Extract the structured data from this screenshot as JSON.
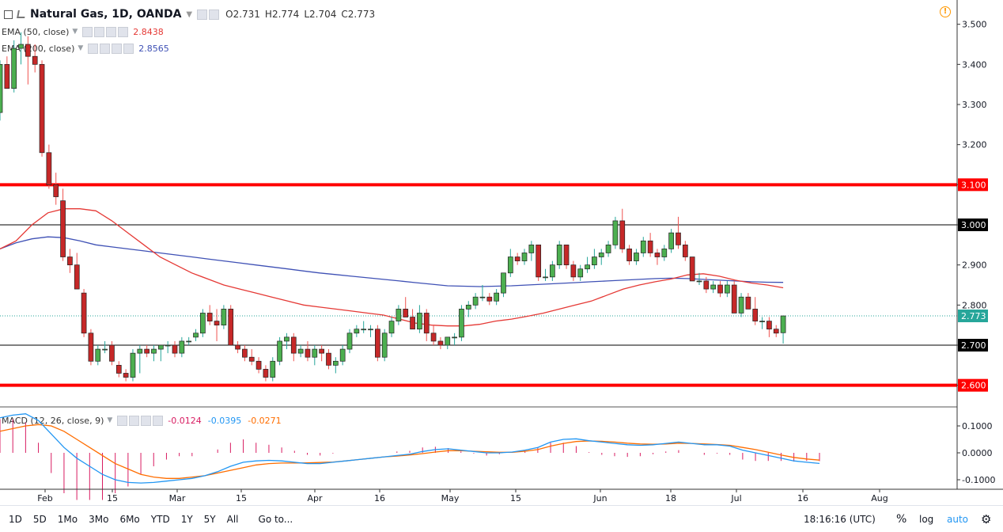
{
  "header": {
    "menu_icon": "menu-square-icon",
    "collapse_icon": "chevron-diagonal-icon",
    "symbol_title": "Natural Gas, 1D, OANDA",
    "ohlc": {
      "o_label": "O",
      "o": "2.731",
      "h_label": "H",
      "h": "2.774",
      "l_label": "L",
      "l": "2.704",
      "c_label": "C",
      "c": "2.773"
    },
    "alert_icon": "alert-clock-icon"
  },
  "indicators": {
    "ema50": {
      "label": "EMA (50, close)",
      "value": "2.8438",
      "color": "#e53935"
    },
    "ema200": {
      "label": "EMA (200, close)",
      "value": "2.8565",
      "color": "#3f51b5"
    },
    "macd": {
      "label": "MACD (12, 26, close, 9)",
      "hist": "-0.0124",
      "macd": "-0.0395",
      "signal": "-0.0271",
      "hist_color": "#d81b60",
      "macd_color": "#2196f3",
      "signal_color": "#ff6d00"
    }
  },
  "price_axis": {
    "ticks": [
      "3.500",
      "3.400",
      "3.300",
      "3.200",
      "3.100",
      "3.000",
      "2.900",
      "2.800",
      "2.700",
      "2.600"
    ],
    "badges": [
      {
        "text": "3.100",
        "price": 3.1,
        "bg": "#ff0000",
        "fg": "#ffffff"
      },
      {
        "text": "3.000",
        "price": 3.0,
        "bg": "#000000",
        "fg": "#ffffff"
      },
      {
        "text": "2.773",
        "price": 2.773,
        "bg": "#26a69a",
        "fg": "#ffffff"
      },
      {
        "text": "2.700",
        "price": 2.7,
        "bg": "#000000",
        "fg": "#ffffff"
      },
      {
        "text": "2.600",
        "price": 2.6,
        "bg": "#ff0000",
        "fg": "#ffffff"
      }
    ]
  },
  "macd_axis": {
    "ticks": [
      "0.1000",
      "0.0000",
      "-0.1000"
    ]
  },
  "time_axis": {
    "labels": [
      "Feb",
      "15",
      "Mar",
      "15",
      "Apr",
      "16",
      "May",
      "15",
      "Jun",
      "18",
      "Jul",
      "16",
      "Aug"
    ]
  },
  "horizontal_lines": [
    {
      "price": 3.1,
      "color": "#ff0000",
      "kind": "resistance"
    },
    {
      "price": 3.0,
      "color": "#000000",
      "kind": "level"
    },
    {
      "price": 2.7,
      "color": "#000000",
      "kind": "level"
    },
    {
      "price": 2.6,
      "color": "#ff0000",
      "kind": "support"
    }
  ],
  "bottom_bar": {
    "timeframes": [
      "1D",
      "5D",
      "1Mo",
      "3Mo",
      "6Mo",
      "YTD",
      "1Y",
      "5Y",
      "All"
    ],
    "goto": "Go to...",
    "clock": "18:16:16 (UTC)",
    "percent": "%",
    "log": "log",
    "auto": "auto",
    "settings_icon": "gear-icon"
  },
  "colors": {
    "up": "#26a69a",
    "down": "#ef5350",
    "up_body": "#4caf50",
    "down_body": "#c62828"
  },
  "chart_data": {
    "type": "candlestick",
    "title": "Natural Gas, 1D, OANDA",
    "ylim": [
      2.57,
      3.55
    ],
    "candles": [
      [
        3.28,
        3.41,
        3.26,
        3.4
      ],
      [
        3.4,
        3.42,
        3.34,
        3.34
      ],
      [
        3.34,
        3.46,
        3.33,
        3.44
      ],
      [
        3.44,
        3.48,
        3.4,
        3.45
      ],
      [
        3.45,
        3.47,
        3.35,
        3.42
      ],
      [
        3.42,
        3.45,
        3.38,
        3.4
      ],
      [
        3.4,
        3.41,
        3.17,
        3.18
      ],
      [
        3.18,
        3.2,
        3.09,
        3.1
      ],
      [
        3.1,
        3.13,
        3.05,
        3.07
      ],
      [
        3.06,
        3.09,
        2.91,
        2.92
      ],
      [
        2.92,
        2.94,
        2.88,
        2.9
      ],
      [
        2.9,
        2.93,
        2.84,
        2.84
      ],
      [
        2.83,
        2.84,
        2.72,
        2.73
      ],
      [
        2.73,
        2.74,
        2.65,
        2.66
      ],
      [
        2.66,
        2.7,
        2.65,
        2.69
      ],
      [
        2.69,
        2.71,
        2.68,
        2.69
      ],
      [
        2.7,
        2.71,
        2.65,
        2.66
      ],
      [
        2.65,
        2.66,
        2.62,
        2.63
      ],
      [
        2.63,
        2.64,
        2.61,
        2.62
      ],
      [
        2.62,
        2.69,
        2.61,
        2.68
      ],
      [
        2.68,
        2.7,
        2.63,
        2.69
      ],
      [
        2.69,
        2.7,
        2.67,
        2.68
      ],
      [
        2.68,
        2.7,
        2.66,
        2.69
      ],
      [
        2.69,
        2.7,
        2.66,
        2.7
      ],
      [
        2.7,
        2.71,
        2.68,
        2.7
      ],
      [
        2.7,
        2.71,
        2.67,
        2.68
      ],
      [
        2.68,
        2.72,
        2.67,
        2.71
      ],
      [
        2.71,
        2.72,
        2.7,
        2.71
      ],
      [
        2.72,
        2.74,
        2.71,
        2.73
      ],
      [
        2.73,
        2.79,
        2.72,
        2.78
      ],
      [
        2.78,
        2.8,
        2.75,
        2.76
      ],
      [
        2.76,
        2.79,
        2.71,
        2.75
      ],
      [
        2.75,
        2.8,
        2.74,
        2.79
      ],
      [
        2.79,
        2.8,
        2.7,
        2.7
      ],
      [
        2.7,
        2.71,
        2.68,
        2.69
      ],
      [
        2.69,
        2.7,
        2.66,
        2.67
      ],
      [
        2.67,
        2.69,
        2.65,
        2.66
      ],
      [
        2.66,
        2.67,
        2.63,
        2.64
      ],
      [
        2.64,
        2.65,
        2.61,
        2.62
      ],
      [
        2.62,
        2.67,
        2.61,
        2.66
      ],
      [
        2.66,
        2.72,
        2.65,
        2.71
      ],
      [
        2.71,
        2.73,
        2.69,
        2.72
      ],
      [
        2.72,
        2.73,
        2.66,
        2.68
      ],
      [
        2.68,
        2.7,
        2.67,
        2.69
      ],
      [
        2.69,
        2.71,
        2.66,
        2.67
      ],
      [
        2.67,
        2.7,
        2.65,
        2.69
      ],
      [
        2.69,
        2.7,
        2.66,
        2.68
      ],
      [
        2.68,
        2.69,
        2.64,
        2.65
      ],
      [
        2.65,
        2.67,
        2.63,
        2.66
      ],
      [
        2.66,
        2.7,
        2.65,
        2.69
      ],
      [
        2.69,
        2.74,
        2.68,
        2.73
      ],
      [
        2.73,
        2.75,
        2.72,
        2.74
      ],
      [
        2.74,
        2.76,
        2.73,
        2.74
      ],
      [
        2.74,
        2.75,
        2.72,
        2.74
      ],
      [
        2.74,
        2.75,
        2.66,
        2.67
      ],
      [
        2.67,
        2.74,
        2.66,
        2.73
      ],
      [
        2.73,
        2.77,
        2.72,
        2.76
      ],
      [
        2.76,
        2.8,
        2.75,
        2.79
      ],
      [
        2.79,
        2.82,
        2.77,
        2.77
      ],
      [
        2.77,
        2.79,
        2.74,
        2.74
      ],
      [
        2.74,
        2.8,
        2.73,
        2.78
      ],
      [
        2.78,
        2.79,
        2.71,
        2.73
      ],
      [
        2.73,
        2.75,
        2.7,
        2.71
      ],
      [
        2.71,
        2.72,
        2.69,
        2.7
      ],
      [
        2.7,
        2.72,
        2.69,
        2.72
      ],
      [
        2.72,
        2.73,
        2.7,
        2.72
      ],
      [
        2.72,
        2.8,
        2.71,
        2.79
      ],
      [
        2.79,
        2.81,
        2.77,
        2.8
      ],
      [
        2.8,
        2.83,
        2.79,
        2.82
      ],
      [
        2.82,
        2.85,
        2.81,
        2.82
      ],
      [
        2.82,
        2.83,
        2.8,
        2.81
      ],
      [
        2.81,
        2.84,
        2.8,
        2.83
      ],
      [
        2.83,
        2.88,
        2.82,
        2.88
      ],
      [
        2.88,
        2.94,
        2.87,
        2.92
      ],
      [
        2.92,
        2.93,
        2.9,
        2.91
      ],
      [
        2.91,
        2.94,
        2.9,
        2.93
      ],
      [
        2.93,
        2.96,
        2.91,
        2.95
      ],
      [
        2.95,
        2.95,
        2.86,
        2.87
      ],
      [
        2.87,
        2.89,
        2.86,
        2.87
      ],
      [
        2.87,
        2.91,
        2.86,
        2.9
      ],
      [
        2.9,
        2.96,
        2.89,
        2.95
      ],
      [
        2.95,
        2.95,
        2.89,
        2.9
      ],
      [
        2.9,
        2.91,
        2.86,
        2.87
      ],
      [
        2.87,
        2.9,
        2.86,
        2.89
      ],
      [
        2.89,
        2.92,
        2.88,
        2.9
      ],
      [
        2.9,
        2.94,
        2.89,
        2.92
      ],
      [
        2.92,
        2.94,
        2.9,
        2.93
      ],
      [
        2.93,
        2.96,
        2.92,
        2.95
      ],
      [
        2.95,
        3.02,
        2.94,
        3.01
      ],
      [
        3.01,
        3.04,
        2.93,
        2.94
      ],
      [
        2.94,
        2.95,
        2.9,
        2.91
      ],
      [
        2.91,
        2.94,
        2.9,
        2.93
      ],
      [
        2.93,
        2.97,
        2.92,
        2.96
      ],
      [
        2.96,
        2.98,
        2.92,
        2.93
      ],
      [
        2.93,
        2.94,
        2.9,
        2.92
      ],
      [
        2.92,
        2.95,
        2.91,
        2.94
      ],
      [
        2.94,
        2.99,
        2.93,
        2.98
      ],
      [
        2.98,
        3.02,
        2.94,
        2.95
      ],
      [
        2.95,
        2.96,
        2.91,
        2.92
      ],
      [
        2.92,
        2.92,
        2.86,
        2.86
      ],
      [
        2.86,
        2.88,
        2.85,
        2.86
      ],
      [
        2.86,
        2.87,
        2.83,
        2.84
      ],
      [
        2.84,
        2.86,
        2.83,
        2.85
      ],
      [
        2.85,
        2.86,
        2.82,
        2.83
      ],
      [
        2.83,
        2.86,
        2.82,
        2.85
      ],
      [
        2.85,
        2.86,
        2.78,
        2.78
      ],
      [
        2.78,
        2.83,
        2.77,
        2.82
      ],
      [
        2.82,
        2.83,
        2.79,
        2.79
      ],
      [
        2.79,
        2.82,
        2.75,
        2.76
      ],
      [
        2.76,
        2.77,
        2.74,
        2.76
      ],
      [
        2.76,
        2.77,
        2.72,
        2.74
      ],
      [
        2.74,
        2.75,
        2.72,
        2.73
      ],
      [
        2.731,
        2.774,
        2.704,
        2.773
      ]
    ],
    "ema50": [
      2.94,
      2.96,
      3.0,
      3.03,
      3.04,
      3.04,
      3.035,
      3.01,
      2.98,
      2.95,
      2.92,
      2.9,
      2.88,
      2.865,
      2.85,
      2.84,
      2.83,
      2.82,
      2.81,
      2.8,
      2.795,
      2.79,
      2.785,
      2.78,
      2.775,
      2.765,
      2.755,
      2.75,
      2.748,
      2.748,
      2.752,
      2.76,
      2.765,
      2.772,
      2.78,
      2.79,
      2.8,
      2.81,
      2.825,
      2.84,
      2.85,
      2.858,
      2.865,
      2.875,
      2.878,
      2.872,
      2.862,
      2.855,
      2.85,
      2.843
    ],
    "ema200": [
      2.94,
      2.955,
      2.965,
      2.97,
      2.968,
      2.96,
      2.95,
      2.945,
      2.94,
      2.935,
      2.93,
      2.925,
      2.92,
      2.915,
      2.91,
      2.905,
      2.9,
      2.895,
      2.89,
      2.885,
      2.88,
      2.876,
      2.872,
      2.868,
      2.864,
      2.86,
      2.856,
      2.852,
      2.848,
      2.847,
      2.846,
      2.847,
      2.848,
      2.85,
      2.852,
      2.854,
      2.856,
      2.858,
      2.86,
      2.862,
      2.864,
      2.866,
      2.867,
      2.866,
      2.864,
      2.862,
      2.86,
      2.858,
      2.857,
      2.8565
    ],
    "macd": {
      "macd": [
        0.13,
        0.14,
        0.145,
        0.12,
        0.07,
        0.02,
        -0.02,
        -0.05,
        -0.08,
        -0.1,
        -0.11,
        -0.112,
        -0.11,
        -0.105,
        -0.1,
        -0.095,
        -0.085,
        -0.07,
        -0.05,
        -0.035,
        -0.03,
        -0.028,
        -0.03,
        -0.035,
        -0.04,
        -0.04,
        -0.035,
        -0.03,
        -0.025,
        -0.02,
        -0.015,
        -0.01,
        -0.005,
        0.005,
        0.012,
        0.015,
        0.01,
        0.005,
        0.0,
        0.0,
        0.003,
        0.01,
        0.02,
        0.04,
        0.05,
        0.052,
        0.045,
        0.04,
        0.035,
        0.03,
        0.028,
        0.03,
        0.035,
        0.04,
        0.035,
        0.03,
        0.03,
        0.025,
        0.01,
        0.0,
        -0.01,
        -0.02,
        -0.03,
        -0.035,
        -0.0395
      ],
      "signal": [
        0.08,
        0.09,
        0.1,
        0.105,
        0.1,
        0.08,
        0.05,
        0.02,
        -0.01,
        -0.04,
        -0.06,
        -0.08,
        -0.09,
        -0.095,
        -0.095,
        -0.09,
        -0.085,
        -0.075,
        -0.065,
        -0.055,
        -0.045,
        -0.04,
        -0.038,
        -0.038,
        -0.037,
        -0.036,
        -0.034,
        -0.03,
        -0.025,
        -0.02,
        -0.015,
        -0.012,
        -0.008,
        -0.003,
        0.003,
        0.008,
        0.008,
        0.006,
        0.004,
        0.002,
        0.002,
        0.006,
        0.012,
        0.025,
        0.035,
        0.042,
        0.044,
        0.043,
        0.04,
        0.036,
        0.033,
        0.032,
        0.033,
        0.036,
        0.035,
        0.033,
        0.031,
        0.028,
        0.02,
        0.012,
        0.002,
        -0.008,
        -0.017,
        -0.023,
        -0.0271
      ]
    }
  }
}
